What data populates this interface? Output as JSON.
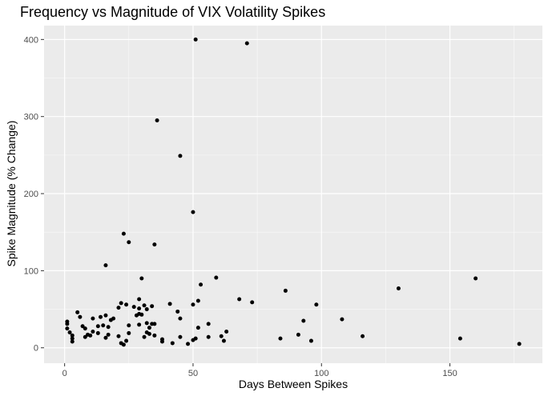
{
  "chart_data": {
    "type": "scatter",
    "title": "Frequency vs Magnitude of VIX Volatility Spikes",
    "xlabel": "Days Between Spikes",
    "ylabel": "Spike Magnitude (% Change)",
    "xlim": [
      -8,
      186
    ],
    "ylim": [
      -20,
      418
    ],
    "xticks": [
      0,
      50,
      100,
      150
    ],
    "yticks": [
      0,
      100,
      200,
      300,
      400
    ],
    "grid": true,
    "points": [
      {
        "x": 1,
        "y": 25
      },
      {
        "x": 1,
        "y": 31
      },
      {
        "x": 1,
        "y": 34
      },
      {
        "x": 2,
        "y": 20
      },
      {
        "x": 3,
        "y": 16
      },
      {
        "x": 3,
        "y": 12
      },
      {
        "x": 3,
        "y": 8
      },
      {
        "x": 5,
        "y": 46
      },
      {
        "x": 6,
        "y": 40
      },
      {
        "x": 7,
        "y": 28
      },
      {
        "x": 8,
        "y": 25
      },
      {
        "x": 8,
        "y": 14
      },
      {
        "x": 9,
        "y": 17
      },
      {
        "x": 10,
        "y": 16
      },
      {
        "x": 11,
        "y": 38
      },
      {
        "x": 11,
        "y": 21
      },
      {
        "x": 13,
        "y": 28
      },
      {
        "x": 13,
        "y": 19
      },
      {
        "x": 14,
        "y": 40
      },
      {
        "x": 15,
        "y": 29
      },
      {
        "x": 16,
        "y": 42
      },
      {
        "x": 16,
        "y": 13
      },
      {
        "x": 16,
        "y": 107
      },
      {
        "x": 17,
        "y": 17
      },
      {
        "x": 17,
        "y": 27
      },
      {
        "x": 18,
        "y": 36
      },
      {
        "x": 19,
        "y": 38
      },
      {
        "x": 21,
        "y": 15
      },
      {
        "x": 21,
        "y": 52
      },
      {
        "x": 22,
        "y": 58
      },
      {
        "x": 22,
        "y": 6
      },
      {
        "x": 23,
        "y": 4
      },
      {
        "x": 23,
        "y": 148
      },
      {
        "x": 24,
        "y": 56
      },
      {
        "x": 24,
        "y": 9
      },
      {
        "x": 25,
        "y": 19
      },
      {
        "x": 25,
        "y": 29
      },
      {
        "x": 25,
        "y": 137
      },
      {
        "x": 27,
        "y": 53
      },
      {
        "x": 28,
        "y": 42
      },
      {
        "x": 29,
        "y": 30
      },
      {
        "x": 29,
        "y": 63
      },
      {
        "x": 29,
        "y": 44
      },
      {
        "x": 29,
        "y": 51
      },
      {
        "x": 30,
        "y": 90
      },
      {
        "x": 30,
        "y": 43
      },
      {
        "x": 31,
        "y": 14
      },
      {
        "x": 31,
        "y": 55
      },
      {
        "x": 32,
        "y": 20
      },
      {
        "x": 32,
        "y": 50
      },
      {
        "x": 32,
        "y": 32
      },
      {
        "x": 33,
        "y": 26
      },
      {
        "x": 33,
        "y": 18
      },
      {
        "x": 34,
        "y": 54
      },
      {
        "x": 34,
        "y": 31
      },
      {
        "x": 35,
        "y": 16
      },
      {
        "x": 35,
        "y": 31
      },
      {
        "x": 35,
        "y": 134
      },
      {
        "x": 36,
        "y": 295
      },
      {
        "x": 38,
        "y": 11
      },
      {
        "x": 38,
        "y": 8
      },
      {
        "x": 41,
        "y": 57
      },
      {
        "x": 42,
        "y": 6
      },
      {
        "x": 44,
        "y": 47
      },
      {
        "x": 45,
        "y": 38
      },
      {
        "x": 45,
        "y": 14
      },
      {
        "x": 45,
        "y": 249
      },
      {
        "x": 48,
        "y": 5
      },
      {
        "x": 50,
        "y": 176
      },
      {
        "x": 50,
        "y": 10
      },
      {
        "x": 50,
        "y": 56
      },
      {
        "x": 51,
        "y": 12
      },
      {
        "x": 51,
        "y": 400
      },
      {
        "x": 52,
        "y": 26
      },
      {
        "x": 52,
        "y": 61
      },
      {
        "x": 53,
        "y": 82
      },
      {
        "x": 56,
        "y": 14
      },
      {
        "x": 56,
        "y": 31
      },
      {
        "x": 59,
        "y": 91
      },
      {
        "x": 61,
        "y": 15
      },
      {
        "x": 62,
        "y": 9
      },
      {
        "x": 63,
        "y": 21
      },
      {
        "x": 68,
        "y": 63
      },
      {
        "x": 71,
        "y": 395
      },
      {
        "x": 73,
        "y": 59
      },
      {
        "x": 84,
        "y": 12
      },
      {
        "x": 86,
        "y": 74
      },
      {
        "x": 91,
        "y": 17
      },
      {
        "x": 93,
        "y": 35
      },
      {
        "x": 96,
        "y": 9
      },
      {
        "x": 98,
        "y": 56
      },
      {
        "x": 108,
        "y": 37
      },
      {
        "x": 116,
        "y": 15
      },
      {
        "x": 130,
        "y": 77
      },
      {
        "x": 154,
        "y": 12
      },
      {
        "x": 160,
        "y": 90
      },
      {
        "x": 177,
        "y": 5
      }
    ]
  }
}
